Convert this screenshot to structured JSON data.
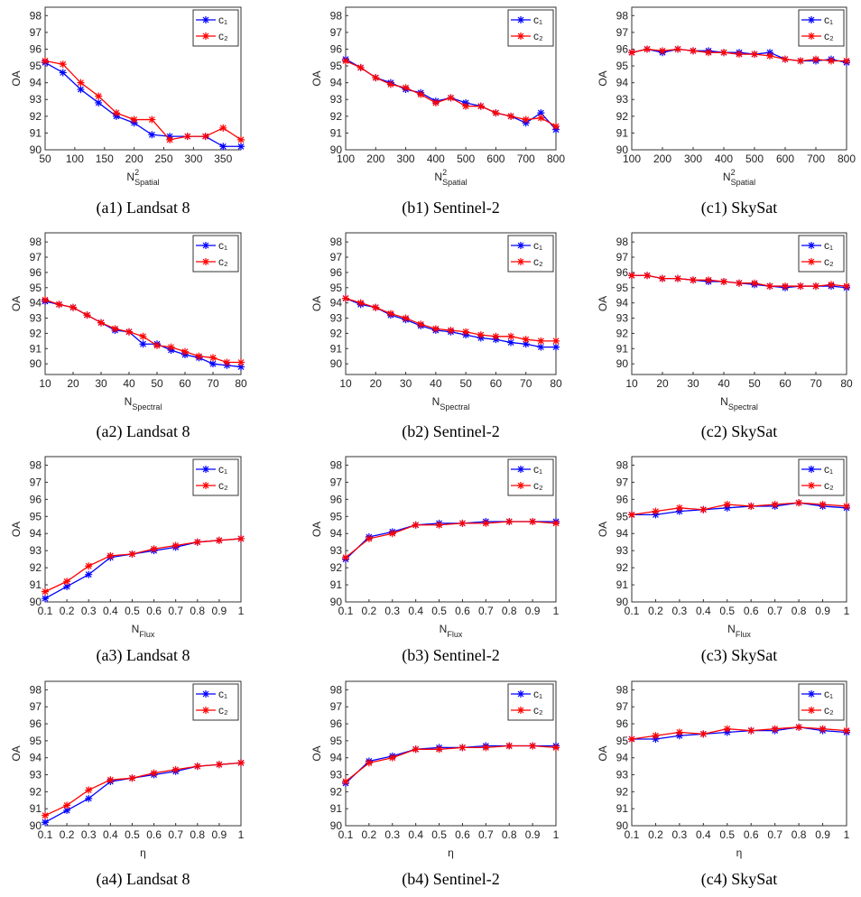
{
  "chart_data": [
    {
      "type": "line",
      "title": "(a1) Landsat 8",
      "y_label": "OA",
      "x_label": {
        "main": "N",
        "sup": "2",
        "sub": "Spatial"
      },
      "legend": "upper right",
      "x": [
        50,
        80,
        110,
        140,
        170,
        200,
        230,
        260,
        290,
        320,
        350,
        380
      ],
      "xlim": [
        50,
        380
      ],
      "xticks": [
        50,
        100,
        150,
        200,
        250,
        300,
        350
      ],
      "ylim": [
        90,
        98.5
      ],
      "yticks": [
        90,
        91,
        92,
        93,
        94,
        95,
        96,
        97,
        98
      ],
      "series": [
        {
          "name": "c₁",
          "color": "#0000ff",
          "values": [
            95.2,
            94.6,
            93.6,
            92.8,
            92.0,
            91.6,
            90.9,
            90.8,
            90.8,
            90.8,
            90.2,
            90.2
          ]
        },
        {
          "name": "c₂",
          "color": "#ff0000",
          "values": [
            95.3,
            95.1,
            94.0,
            93.2,
            92.2,
            91.8,
            91.8,
            90.6,
            90.8,
            90.8,
            91.3,
            90.6
          ]
        }
      ]
    },
    {
      "type": "line",
      "title": "(b1) Sentinel-2",
      "y_label": "OA",
      "x_label": {
        "main": "N",
        "sup": "2",
        "sub": "Spatial"
      },
      "legend": "upper right",
      "x": [
        100,
        150,
        200,
        250,
        300,
        350,
        400,
        450,
        500,
        550,
        600,
        650,
        700,
        750,
        800
      ],
      "xlim": [
        100,
        800
      ],
      "xticks": [
        100,
        200,
        300,
        400,
        500,
        600,
        700,
        800
      ],
      "ylim": [
        90,
        98.5
      ],
      "yticks": [
        90,
        91,
        92,
        93,
        94,
        95,
        96,
        97,
        98
      ],
      "series": [
        {
          "name": "c₁",
          "color": "#0000ff",
          "values": [
            95.4,
            94.9,
            94.3,
            94.0,
            93.6,
            93.4,
            92.9,
            93.1,
            92.8,
            92.6,
            92.2,
            92.0,
            91.6,
            92.2,
            91.2
          ]
        },
        {
          "name": "c₂",
          "color": "#ff0000",
          "values": [
            95.3,
            94.9,
            94.3,
            93.9,
            93.7,
            93.3,
            92.8,
            93.1,
            92.6,
            92.6,
            92.2,
            92.0,
            91.8,
            91.9,
            91.4
          ]
        }
      ]
    },
    {
      "type": "line",
      "title": "(c1) SkySat",
      "y_label": "OA",
      "x_label": {
        "main": "N",
        "sup": "2",
        "sub": "Spatial"
      },
      "legend": "upper right",
      "x": [
        100,
        150,
        200,
        250,
        300,
        350,
        400,
        450,
        500,
        550,
        600,
        650,
        700,
        750,
        800
      ],
      "xlim": [
        100,
        800
      ],
      "xticks": [
        100,
        200,
        300,
        400,
        500,
        600,
        700,
        800
      ],
      "ylim": [
        90,
        98.5
      ],
      "yticks": [
        90,
        91,
        92,
        93,
        94,
        95,
        96,
        97,
        98
      ],
      "series": [
        {
          "name": "c₁",
          "color": "#0000ff",
          "values": [
            95.8,
            96.0,
            95.8,
            96.0,
            95.9,
            95.9,
            95.8,
            95.8,
            95.7,
            95.8,
            95.4,
            95.3,
            95.3,
            95.4,
            95.2
          ]
        },
        {
          "name": "c₂",
          "color": "#ff0000",
          "values": [
            95.8,
            96.0,
            95.9,
            96.0,
            95.9,
            95.8,
            95.8,
            95.7,
            95.7,
            95.6,
            95.4,
            95.3,
            95.4,
            95.3,
            95.3
          ]
        }
      ]
    },
    {
      "type": "line",
      "title": "(a2) Landsat 8",
      "y_label": "OA",
      "x_label": {
        "main": "N",
        "sub": "Spectral"
      },
      "legend": "upper right",
      "x": [
        10,
        15,
        20,
        25,
        30,
        35,
        40,
        45,
        50,
        55,
        60,
        65,
        70,
        75,
        80
      ],
      "xlim": [
        10,
        80
      ],
      "xticks": [
        10,
        20,
        30,
        40,
        50,
        60,
        70,
        80
      ],
      "ylim": [
        89.3,
        98.6
      ],
      "yticks": [
        90,
        91,
        92,
        93,
        94,
        95,
        96,
        97,
        98
      ],
      "series": [
        {
          "name": "c₁",
          "color": "#0000ff",
          "values": [
            94.1,
            93.9,
            93.7,
            93.2,
            92.7,
            92.2,
            92.1,
            91.3,
            91.3,
            90.9,
            90.6,
            90.4,
            90.0,
            89.9,
            89.8
          ]
        },
        {
          "name": "c₂",
          "color": "#ff0000",
          "values": [
            94.2,
            93.9,
            93.7,
            93.2,
            92.7,
            92.3,
            92.1,
            91.8,
            91.2,
            91.1,
            90.8,
            90.5,
            90.4,
            90.1,
            90.1
          ]
        }
      ]
    },
    {
      "type": "line",
      "title": "(b2) Sentinel-2",
      "y_label": "OA",
      "x_label": {
        "main": "N",
        "sub": "Spectral"
      },
      "legend": "upper right",
      "x": [
        10,
        15,
        20,
        25,
        30,
        35,
        40,
        45,
        50,
        55,
        60,
        65,
        70,
        75,
        80
      ],
      "xlim": [
        10,
        80
      ],
      "xticks": [
        10,
        20,
        30,
        40,
        50,
        60,
        70,
        80
      ],
      "ylim": [
        89.3,
        98.6
      ],
      "yticks": [
        90,
        91,
        92,
        93,
        94,
        95,
        96,
        97,
        98
      ],
      "series": [
        {
          "name": "c₁",
          "color": "#0000ff",
          "values": [
            94.3,
            93.9,
            93.7,
            93.2,
            92.9,
            92.5,
            92.2,
            92.1,
            91.9,
            91.7,
            91.6,
            91.4,
            91.3,
            91.1,
            91.1
          ]
        },
        {
          "name": "c₂",
          "color": "#ff0000",
          "values": [
            94.3,
            94.0,
            93.7,
            93.3,
            93.0,
            92.6,
            92.3,
            92.2,
            92.1,
            91.9,
            91.8,
            91.8,
            91.6,
            91.5,
            91.5
          ]
        }
      ]
    },
    {
      "type": "line",
      "title": "(c2) SkySat",
      "y_label": "OA",
      "x_label": {
        "main": "N",
        "sub": "Spectral"
      },
      "legend": "upper right",
      "x": [
        10,
        15,
        20,
        25,
        30,
        35,
        40,
        45,
        50,
        55,
        60,
        65,
        70,
        75,
        80
      ],
      "xlim": [
        10,
        80
      ],
      "xticks": [
        10,
        20,
        30,
        40,
        50,
        60,
        70,
        80
      ],
      "ylim": [
        89.3,
        98.6
      ],
      "yticks": [
        90,
        91,
        92,
        93,
        94,
        95,
        96,
        97,
        98
      ],
      "series": [
        {
          "name": "c₁",
          "color": "#0000ff",
          "values": [
            95.8,
            95.8,
            95.6,
            95.6,
            95.5,
            95.4,
            95.4,
            95.3,
            95.2,
            95.1,
            95.0,
            95.1,
            95.1,
            95.1,
            95.0
          ]
        },
        {
          "name": "c₂",
          "color": "#ff0000",
          "values": [
            95.8,
            95.8,
            95.6,
            95.6,
            95.5,
            95.5,
            95.4,
            95.3,
            95.3,
            95.1,
            95.1,
            95.1,
            95.1,
            95.2,
            95.1
          ]
        }
      ]
    },
    {
      "type": "line",
      "title": "(a3) Landsat 8",
      "y_label": "OA",
      "x_label": {
        "main": "N",
        "sub": "Flux"
      },
      "legend": "upper right",
      "x": [
        0.1,
        0.2,
        0.3,
        0.4,
        0.5,
        0.6,
        0.7,
        0.8,
        0.9,
        1
      ],
      "xlim": [
        0.1,
        1
      ],
      "xticks": [
        0.1,
        0.2,
        0.3,
        0.4,
        0.5,
        0.6,
        0.7,
        0.8,
        0.9,
        1
      ],
      "ylim": [
        90,
        98.5
      ],
      "yticks": [
        90,
        91,
        92,
        93,
        94,
        95,
        96,
        97,
        98
      ],
      "series": [
        {
          "name": "c₁",
          "color": "#0000ff",
          "values": [
            90.2,
            90.9,
            91.6,
            92.6,
            92.8,
            93.0,
            93.2,
            93.5,
            93.6,
            93.7
          ]
        },
        {
          "name": "c₂",
          "color": "#ff0000",
          "values": [
            90.6,
            91.2,
            92.1,
            92.7,
            92.8,
            93.1,
            93.3,
            93.5,
            93.6,
            93.7
          ]
        }
      ]
    },
    {
      "type": "line",
      "title": "(b3) Sentinel-2",
      "y_label": "OA",
      "x_label": {
        "main": "N",
        "sub": "Flux"
      },
      "legend": "upper right",
      "x": [
        0.1,
        0.2,
        0.3,
        0.4,
        0.5,
        0.6,
        0.7,
        0.8,
        0.9,
        1
      ],
      "xlim": [
        0.1,
        1
      ],
      "xticks": [
        0.1,
        0.2,
        0.3,
        0.4,
        0.5,
        0.6,
        0.7,
        0.8,
        0.9,
        1
      ],
      "ylim": [
        90,
        98.5
      ],
      "yticks": [
        90,
        91,
        92,
        93,
        94,
        95,
        96,
        97,
        98
      ],
      "series": [
        {
          "name": "c₁",
          "color": "#0000ff",
          "values": [
            92.5,
            93.8,
            94.1,
            94.5,
            94.6,
            94.6,
            94.7,
            94.7,
            94.7,
            94.7
          ]
        },
        {
          "name": "c₂",
          "color": "#ff0000",
          "values": [
            92.6,
            93.7,
            94.0,
            94.5,
            94.5,
            94.6,
            94.6,
            94.7,
            94.7,
            94.6
          ]
        }
      ]
    },
    {
      "type": "line",
      "title": "(c3) SkySat",
      "y_label": "OA",
      "x_label": {
        "main": "N",
        "sub": "Flux"
      },
      "legend": "upper right",
      "x": [
        0.1,
        0.2,
        0.3,
        0.4,
        0.5,
        0.6,
        0.7,
        0.8,
        0.9,
        1
      ],
      "xlim": [
        0.1,
        1
      ],
      "xticks": [
        0.1,
        0.2,
        0.3,
        0.4,
        0.5,
        0.6,
        0.7,
        0.8,
        0.9,
        1
      ],
      "ylim": [
        90,
        98.5
      ],
      "yticks": [
        90,
        91,
        92,
        93,
        94,
        95,
        96,
        97,
        98
      ],
      "series": [
        {
          "name": "c₁",
          "color": "#0000ff",
          "values": [
            95.1,
            95.1,
            95.3,
            95.4,
            95.5,
            95.6,
            95.6,
            95.8,
            95.6,
            95.5
          ]
        },
        {
          "name": "c₂",
          "color": "#ff0000",
          "values": [
            95.1,
            95.3,
            95.5,
            95.4,
            95.7,
            95.6,
            95.7,
            95.8,
            95.7,
            95.6
          ]
        }
      ]
    },
    {
      "type": "line",
      "title": "(a4) Landsat 8",
      "y_label": "OA",
      "x_label": {
        "main": "η"
      },
      "legend": "upper right",
      "x": [
        0.1,
        0.2,
        0.3,
        0.4,
        0.5,
        0.6,
        0.7,
        0.8,
        0.9,
        1
      ],
      "xlim": [
        0.1,
        1
      ],
      "xticks": [
        0.1,
        0.2,
        0.3,
        0.4,
        0.5,
        0.6,
        0.7,
        0.8,
        0.9,
        1
      ],
      "ylim": [
        90,
        98.5
      ],
      "yticks": [
        90,
        91,
        92,
        93,
        94,
        95,
        96,
        97,
        98
      ],
      "series": [
        {
          "name": "c₁",
          "color": "#0000ff",
          "values": [
            90.2,
            90.9,
            91.6,
            92.6,
            92.8,
            93.0,
            93.2,
            93.5,
            93.6,
            93.7
          ]
        },
        {
          "name": "c₂",
          "color": "#ff0000",
          "values": [
            90.6,
            91.2,
            92.1,
            92.7,
            92.8,
            93.1,
            93.3,
            93.5,
            93.6,
            93.7
          ]
        }
      ]
    },
    {
      "type": "line",
      "title": "(b4) Sentinel-2",
      "y_label": "OA",
      "x_label": {
        "main": "η"
      },
      "legend": "upper right",
      "x": [
        0.1,
        0.2,
        0.3,
        0.4,
        0.5,
        0.6,
        0.7,
        0.8,
        0.9,
        1
      ],
      "xlim": [
        0.1,
        1
      ],
      "xticks": [
        0.1,
        0.2,
        0.3,
        0.4,
        0.5,
        0.6,
        0.7,
        0.8,
        0.9,
        1
      ],
      "ylim": [
        90,
        98.5
      ],
      "yticks": [
        90,
        91,
        92,
        93,
        94,
        95,
        96,
        97,
        98
      ],
      "series": [
        {
          "name": "c₁",
          "color": "#0000ff",
          "values": [
            92.5,
            93.8,
            94.1,
            94.5,
            94.6,
            94.6,
            94.7,
            94.7,
            94.7,
            94.7
          ]
        },
        {
          "name": "c₂",
          "color": "#ff0000",
          "values": [
            92.6,
            93.7,
            94.0,
            94.5,
            94.5,
            94.6,
            94.6,
            94.7,
            94.7,
            94.6
          ]
        }
      ]
    },
    {
      "type": "line",
      "title": "(c4) SkySat",
      "y_label": "OA",
      "x_label": {
        "main": "η"
      },
      "legend": "upper right",
      "x": [
        0.1,
        0.2,
        0.3,
        0.4,
        0.5,
        0.6,
        0.7,
        0.8,
        0.9,
        1
      ],
      "xlim": [
        0.1,
        1
      ],
      "xticks": [
        0.1,
        0.2,
        0.3,
        0.4,
        0.5,
        0.6,
        0.7,
        0.8,
        0.9,
        1
      ],
      "ylim": [
        90,
        98.5
      ],
      "yticks": [
        90,
        91,
        92,
        93,
        94,
        95,
        96,
        97,
        98
      ],
      "series": [
        {
          "name": "c₁",
          "color": "#0000ff",
          "values": [
            95.1,
            95.1,
            95.3,
            95.4,
            95.5,
            95.6,
            95.6,
            95.8,
            95.6,
            95.5
          ]
        },
        {
          "name": "c₂",
          "color": "#ff0000",
          "values": [
            95.1,
            95.3,
            95.5,
            95.4,
            95.7,
            95.6,
            95.7,
            95.8,
            95.7,
            95.6
          ]
        }
      ]
    }
  ]
}
